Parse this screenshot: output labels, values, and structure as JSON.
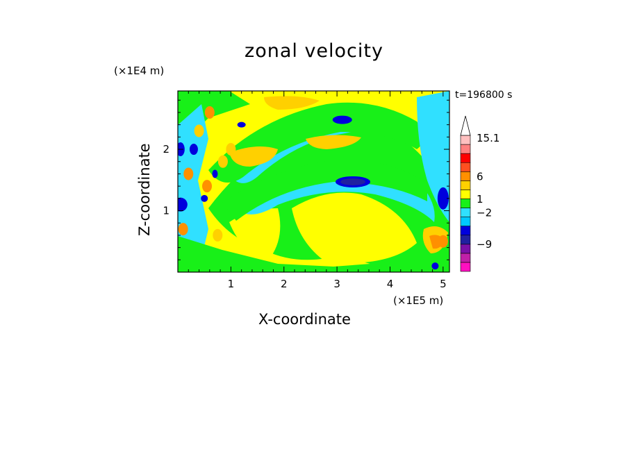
{
  "chart_data": {
    "type": "heatmap",
    "title": "zonal velocity",
    "xlabel": "X-coordinate",
    "ylabel": "Z-coordinate",
    "x_unit": "(×1E5 m)",
    "y_unit": "(×1E4 m)",
    "time_label": "t=196800 s",
    "xlim": [
      0,
      5.12
    ],
    "ylim": [
      0,
      2.95
    ],
    "x_ticks": [
      1,
      2,
      3,
      4,
      5
    ],
    "y_ticks": [
      1,
      2
    ],
    "colorbar": {
      "tick_labels": [
        "15.1",
        "6",
        "1",
        "−2",
        "−9"
      ],
      "tick_values": [
        15.1,
        6,
        1,
        -2,
        -9
      ],
      "levels": [
        -15,
        -12,
        -9,
        -6,
        -3,
        -2,
        -1,
        0,
        1,
        3,
        6,
        9,
        12,
        15.1
      ],
      "colors": [
        "#ff10c0",
        "#c020a8",
        "#7a10a8",
        "#2020a0",
        "#0000dd",
        "#00c8ff",
        "#30e0ff",
        "#18f018",
        "#ffff00",
        "#ffd000",
        "#ff9000",
        "#ff5020",
        "#ff0000",
        "#ff8080",
        "#ffc0c0"
      ]
    },
    "features": [
      {
        "kind": "negative jet",
        "x": [
          0.9,
          5.0
        ],
        "z": [
          1.3,
          2.4
        ],
        "min": -9
      },
      {
        "kind": "positive region",
        "x": [
          0.8,
          4.6
        ],
        "z": [
          0.2,
          1.3
        ],
        "max": 6
      },
      {
        "kind": "strong core",
        "x": 3.3,
        "z": 1.5,
        "value": -9
      },
      {
        "kind": "strong core",
        "x": 3.1,
        "z": 2.5,
        "value": -9
      }
    ]
  }
}
